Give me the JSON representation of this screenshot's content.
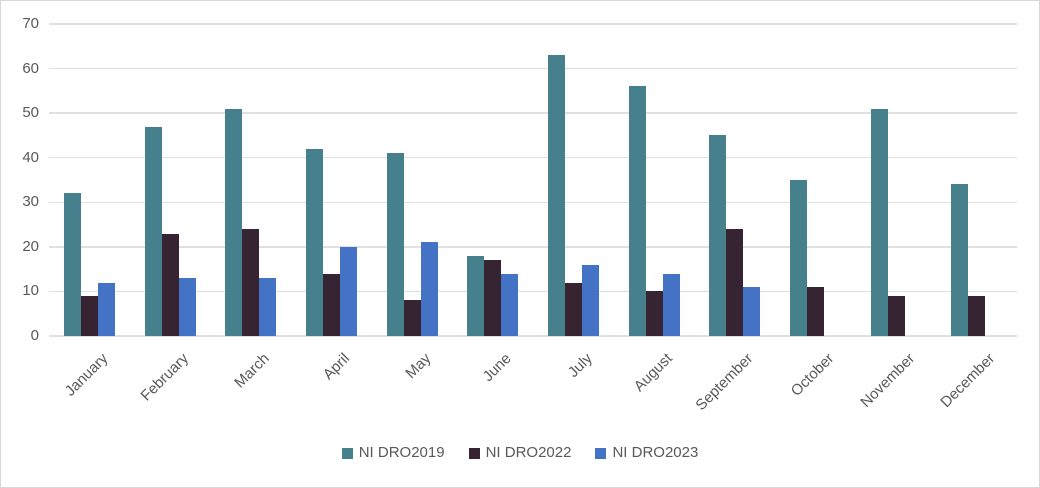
{
  "chart_data": {
    "type": "bar",
    "title": "",
    "xlabel": "",
    "ylabel": "",
    "categories": [
      "January",
      "February",
      "March",
      "April",
      "May",
      "June",
      "July",
      "August",
      "September",
      "October",
      "November",
      "December"
    ],
    "series": [
      {
        "name": "NI DRO2019",
        "color": "#47808d",
        "values": [
          32,
          47,
          51,
          42,
          41,
          18,
          63,
          56,
          45,
          35,
          51,
          34
        ]
      },
      {
        "name": "NI DRO2022",
        "color": "#362433",
        "values": [
          9,
          23,
          24,
          14,
          8,
          17,
          12,
          10,
          24,
          11,
          9,
          9
        ]
      },
      {
        "name": "NI DRO2023",
        "color": "#4472c4",
        "values": [
          12,
          13,
          13,
          20,
          21,
          14,
          16,
          14,
          11,
          0,
          0,
          0
        ]
      }
    ],
    "ylim": [
      0,
      70
    ],
    "ytick_step": 10,
    "grid": true,
    "legend_position": "bottom",
    "colors": {
      "gridline": "#e0e0e0",
      "axis_text": "#595959",
      "frame_border": "#d8d8d8"
    }
  }
}
